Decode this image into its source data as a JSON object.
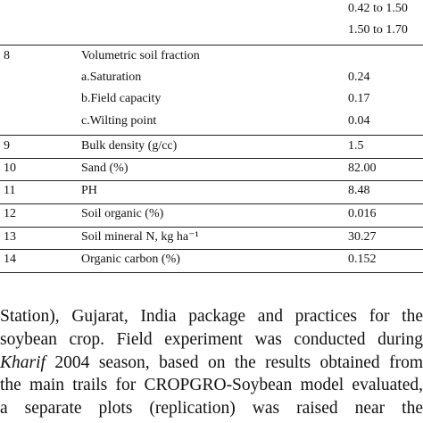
{
  "table": {
    "top_values": [
      "0.42 to 1.50",
      "1.50 to 1.70"
    ],
    "row8": {
      "num": "8",
      "label": "Volumetric soil fraction",
      "sub": [
        {
          "label": "a.Saturation",
          "value": "0.24"
        },
        {
          "label": "b.Field capacity",
          "value": "0.17"
        },
        {
          "label": "c.Wilting point",
          "value": "0.04"
        }
      ]
    },
    "rows": [
      {
        "num": "9",
        "label": "Bulk density (g/cc)",
        "value": "1.5"
      },
      {
        "num": "10",
        "label": "Sand (%)",
        "value": "82.00"
      },
      {
        "num": "11",
        "label": "PH",
        "value": "8.48"
      },
      {
        "num": "12",
        "label": "Soil organic (%)",
        "value": "0.016"
      },
      {
        "num": "13",
        "label": "Soil mineral N, kg ha⁻¹",
        "value": "30.27"
      },
      {
        "num": "14",
        "label": "Organic carbon (%)",
        "value": "0.152"
      }
    ]
  },
  "paragraph": {
    "line1": "Station), Gujarat, India package and practices for the",
    "line2": "soybean crop. Field experiment was conducted during",
    "line3_italic": "Kharif",
    "line3_rest": " 2004 season, based on the results obtained from",
    "line4": "the main trails for CROPGRO-Soybean model evaluated,",
    "line5": "a separate plots (replication) was raised near the"
  }
}
